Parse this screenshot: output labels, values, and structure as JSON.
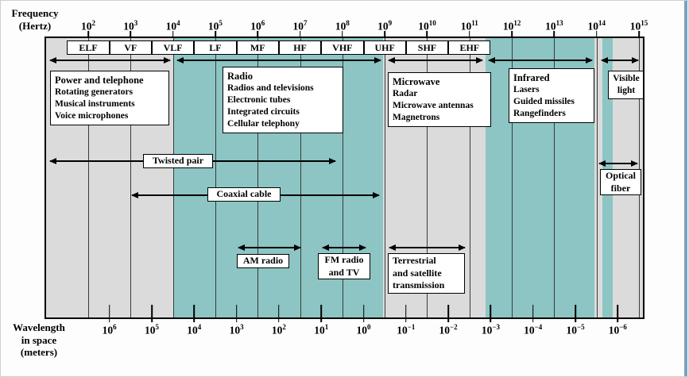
{
  "colors": {
    "band_teal": "#8cc5c3",
    "band_gray": "#dbdbdb"
  },
  "freq_axis": {
    "label_line1": "Frequency",
    "label_line2": "(Hertz)",
    "ticks": [
      {
        "base": "10",
        "exp": "2"
      },
      {
        "base": "10",
        "exp": "3"
      },
      {
        "base": "10",
        "exp": "4"
      },
      {
        "base": "10",
        "exp": "5"
      },
      {
        "base": "10",
        "exp": "6"
      },
      {
        "base": "10",
        "exp": "7"
      },
      {
        "base": "10",
        "exp": "8"
      },
      {
        "base": "10",
        "exp": "9"
      },
      {
        "base": "10",
        "exp": "10"
      },
      {
        "base": "10",
        "exp": "11"
      },
      {
        "base": "10",
        "exp": "12"
      },
      {
        "base": "10",
        "exp": "13"
      },
      {
        "base": "10",
        "exp": "14"
      },
      {
        "base": "10",
        "exp": "15"
      }
    ]
  },
  "bands": [
    "ELF",
    "VF",
    "VLF",
    "LF",
    "MF",
    "HF",
    "VHF",
    "UHF",
    "SHF",
    "EHF"
  ],
  "application_regions": [
    {
      "title": "Power and telephone",
      "items": [
        "Rotating generators",
        "Musical instruments",
        "Voice microphones"
      ]
    },
    {
      "title": "Radio",
      "items": [
        "Radios and televisions",
        "Electronic tubes",
        "Integrated circuits",
        "Cellular telephony"
      ]
    },
    {
      "title": "Microwave",
      "items": [
        "Radar",
        "Microwave antennas",
        "Magnetrons"
      ]
    },
    {
      "title": "Infrared",
      "items": [
        "Lasers",
        "Guided missiles",
        "Rangefinders"
      ]
    },
    {
      "title": "Visible light",
      "items": []
    }
  ],
  "media": {
    "twisted_pair": "Twisted pair",
    "coaxial_cable": "Coaxial cable",
    "am_radio": "AM radio",
    "fm_radio_tv": [
      "FM radio",
      "and TV"
    ],
    "terrestrial": [
      "Terrestrial",
      "and satellite",
      "transmission"
    ],
    "optical_fiber": [
      "Optical",
      "fiber"
    ]
  },
  "wavelength_axis": {
    "label_line1": "Wavelength",
    "label_line2": "in space",
    "label_line3": "(meters)",
    "ticks": [
      {
        "base": "10",
        "exp": "6"
      },
      {
        "base": "10",
        "exp": "5"
      },
      {
        "base": "10",
        "exp": "4"
      },
      {
        "base": "10",
        "exp": "3"
      },
      {
        "base": "10",
        "exp": "2"
      },
      {
        "base": "10",
        "exp": "1"
      },
      {
        "base": "10",
        "exp": "0"
      },
      {
        "base": "10",
        "exp": "−1"
      },
      {
        "base": "10",
        "exp": "−2"
      },
      {
        "base": "10",
        "exp": "−3"
      },
      {
        "base": "10",
        "exp": "−4"
      },
      {
        "base": "10",
        "exp": "−5"
      },
      {
        "base": "10",
        "exp": "−6"
      }
    ]
  }
}
